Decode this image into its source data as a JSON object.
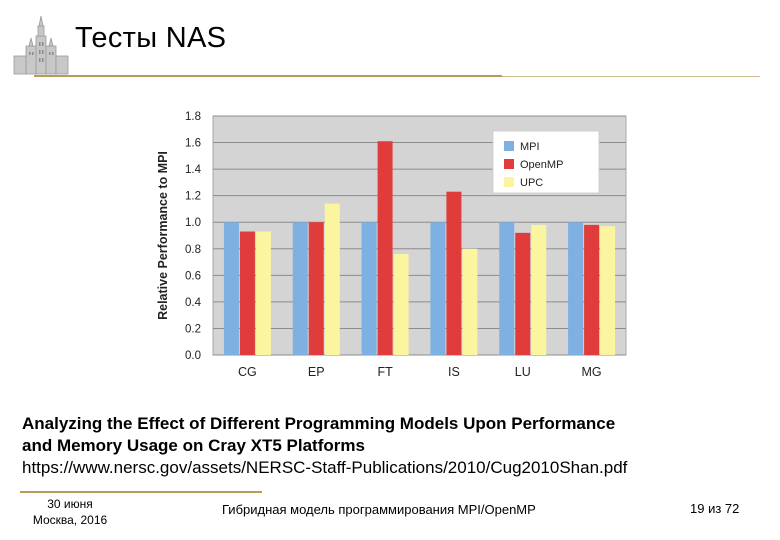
{
  "slide": {
    "title": "Тесты NAS",
    "caption_line1": "Analyzing the Effect of Different Programming Models Upon Performance",
    "caption_line2": "and Memory Usage on Cray XT5 Platforms",
    "caption_line3": "https://www.nersc.gov/assets/NERSC-Staff-Publications/2010/Cug2010Shan.pdf"
  },
  "footer": {
    "date": "30 июня",
    "place": "Москва, 2016",
    "center": "Гибридная модель программирования MPI/OpenMP",
    "page": "19 из 72"
  },
  "chart_data": {
    "type": "bar",
    "title": "",
    "xlabel": "",
    "ylabel": "Relative Performance to MPI",
    "ylim": [
      0,
      1.8
    ],
    "yticks": [
      "0.0",
      "0.2",
      "0.4",
      "0.6",
      "0.8",
      "1.0",
      "1.2",
      "1.4",
      "1.6",
      "1.8"
    ],
    "categories": [
      "CG",
      "EP",
      "FT",
      "IS",
      "LU",
      "MG"
    ],
    "legend_position": "top-right",
    "grid": true,
    "series": [
      {
        "name": "MPI",
        "color": "#7eb0e2",
        "values": [
          1.0,
          1.0,
          1.0,
          1.0,
          1.0,
          1.0
        ]
      },
      {
        "name": "OpenMP",
        "color": "#e03c3c",
        "values": [
          0.93,
          1.0,
          1.61,
          1.23,
          0.92,
          0.98
        ]
      },
      {
        "name": "UPC",
        "color": "#fbf5a0",
        "values": [
          0.93,
          1.14,
          0.76,
          0.8,
          0.98,
          0.97
        ]
      }
    ]
  }
}
